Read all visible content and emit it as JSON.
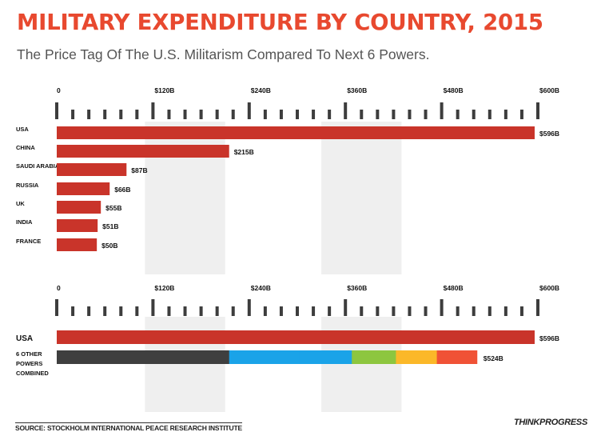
{
  "title": "MILITARY EXPENDITURE BY COUNTRY, 2015",
  "subtitle": "The Price Tag Of The U.S. Militarism Compared To Next 6 Powers.",
  "source": "SOURCE: STOCKHOLM INTERNATIONAL PEACE RESEARCH INSTITUTE",
  "brand": "THINKPROGRESS",
  "colors": {
    "title": "#e8492f",
    "bar": "#c9342a",
    "shade": "#efefef",
    "tick": "#3d3d3d",
    "segments": [
      "#3f3f3f",
      "#1aa3e8",
      "#8dc63f",
      "#fbb829",
      "#f05236"
    ]
  },
  "chart_data": [
    {
      "type": "bar",
      "orientation": "horizontal",
      "categories": [
        "USA",
        "CHINA",
        "SAUDI ARABIA",
        "RUSSIA",
        "UK",
        "INDIA",
        "FRANCE"
      ],
      "values": [
        596,
        215,
        87,
        66,
        55,
        51,
        50
      ],
      "value_labels": [
        "$596B",
        "$215B",
        "$87B",
        "$66B",
        "$55B",
        "$51B",
        "$50B"
      ],
      "xlim": [
        0,
        600
      ],
      "tick_values": [
        0,
        120,
        240,
        360,
        480,
        600
      ],
      "tick_labels": [
        "0",
        "$120B",
        "$240B",
        "$360B",
        "$480B",
        "$600B"
      ],
      "grid": false
    },
    {
      "type": "bar",
      "orientation": "horizontal",
      "stacked": true,
      "categories": [
        "USA",
        "6 OTHER POWERS COMBINED"
      ],
      "category_lines": [
        [
          "USA"
        ],
        [
          "6 OTHER",
          "POWERS",
          "COMBINED"
        ]
      ],
      "usa_value": 596,
      "usa_label": "$596B",
      "stack_segments": [
        215,
        87,
        66,
        55,
        51,
        50
      ],
      "stack_colors": [
        "#3f3f3f",
        "#1aa3e8",
        "#1aa3e8",
        "#8dc63f",
        "#fbb829",
        "#f05236"
      ],
      "stack_total_label": "$524B",
      "xlim": [
        0,
        600
      ],
      "tick_values": [
        0,
        120,
        240,
        360,
        480,
        600
      ],
      "tick_labels": [
        "0",
        "$120B",
        "$240B",
        "$360B",
        "$480B",
        "$600B"
      ],
      "grid": false
    }
  ]
}
